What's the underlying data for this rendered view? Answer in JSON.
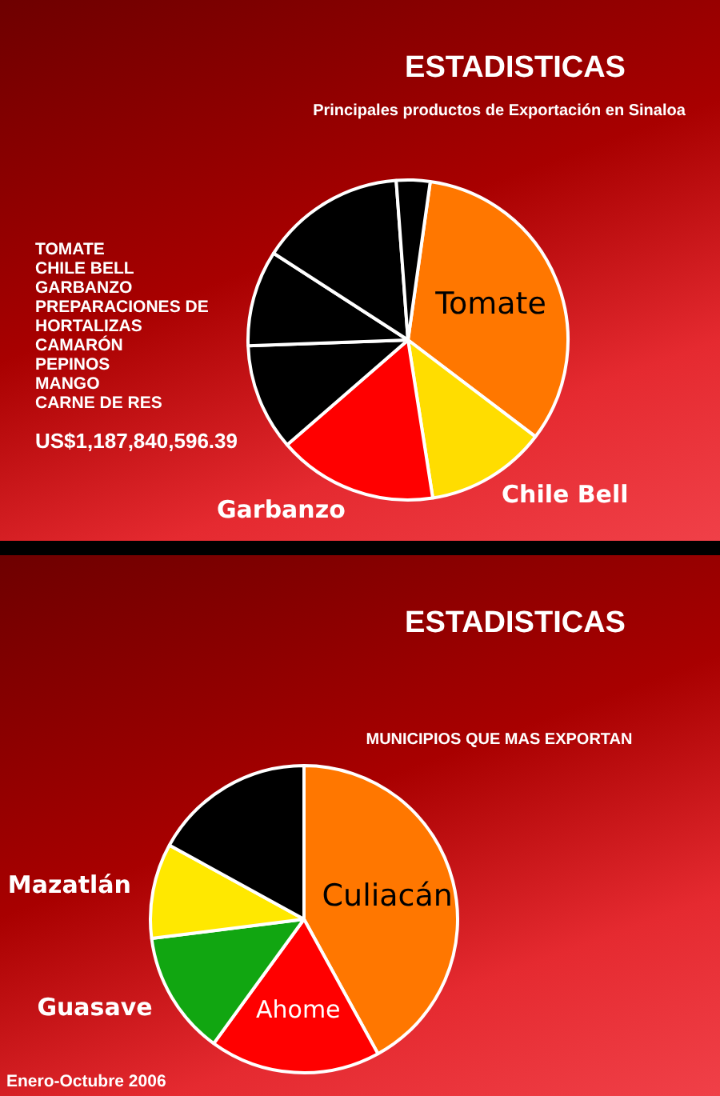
{
  "chart_data": [
    {
      "type": "pie",
      "title": "ESTADISTICAS",
      "subtitle": "Principales productos de Exportación en Sinaloa",
      "categories": [
        "Tomate",
        "Chile Bell",
        "Garbanzo",
        null,
        null,
        null,
        null
      ],
      "values": [
        33.1,
        12.2,
        16.1,
        10.8,
        9.7,
        14.7,
        3.4
      ],
      "colors": [
        "#ff7700",
        "#ffdd00",
        "#ff0000",
        "#000000",
        "#000000",
        "#000000",
        "#000000"
      ],
      "annotations": [
        "TOMATE",
        "CHILE BELL",
        "GARBANZO",
        "PREPARACIONES DE HORTALIZAS",
        "CAMARÓN",
        "PEPINOS",
        "MANGO",
        "CARNE DE RES",
        "US$1,187,840,596.39"
      ]
    },
    {
      "type": "pie",
      "title": "ESTADISTICAS",
      "subtitle": "MUNICIPIOS QUE MAS EXPORTAN",
      "categories": [
        "Culiacán",
        "Ahome",
        "Guasave",
        "Mazatlán",
        null
      ],
      "values": [
        42,
        18,
        13,
        10,
        17
      ],
      "colors": [
        "#ff7700",
        "#ff0000",
        "#11a611",
        "#ffe800",
        "#000000"
      ],
      "annotations": [
        "Enero-Octubre 2006"
      ]
    }
  ]
}
